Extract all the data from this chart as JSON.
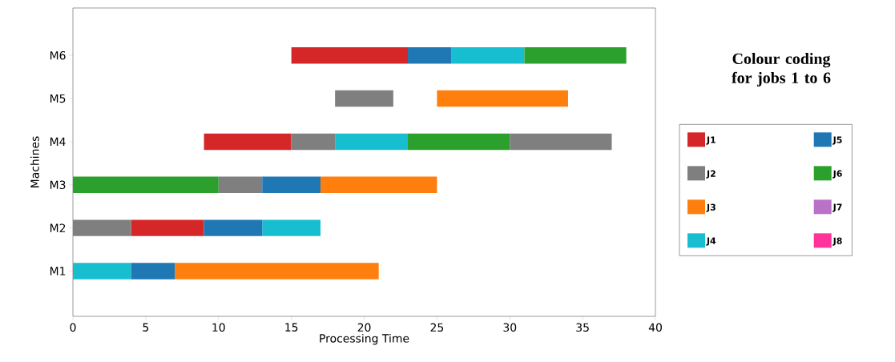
{
  "chart_data": {
    "type": "bar",
    "orientation": "horizontal",
    "xlabel": "Processing Time",
    "ylabel": "Machines",
    "categories": [
      "M6",
      "M5",
      "M4",
      "M3",
      "M2",
      "M1"
    ],
    "xlim": [
      0,
      40
    ],
    "xticks": [
      0,
      5,
      10,
      15,
      20,
      25,
      30,
      35,
      40
    ],
    "legend": "right",
    "legend_title": "Colour coding for jobs 1 to 6",
    "series": [
      {
        "name": "J1",
        "color": "#d62728",
        "base": [
          15,
          null,
          9,
          null,
          4,
          null
        ],
        "values": [
          8,
          null,
          6,
          null,
          5,
          null
        ]
      },
      {
        "name": "J2",
        "color": "#7f7f7f",
        "base": [
          null,
          18,
          15,
          10,
          0,
          null
        ],
        "values": [
          null,
          4,
          3,
          3,
          4,
          null
        ]
      },
      {
        "name": "J3",
        "color": "#ff7f0e",
        "base": [
          null,
          25,
          null,
          17,
          null,
          7
        ],
        "values": [
          null,
          9,
          null,
          8,
          null,
          14
        ]
      },
      {
        "name": "J4",
        "color": "#17becf",
        "base": [
          26,
          null,
          18,
          null,
          13,
          0
        ],
        "values": [
          5,
          null,
          5,
          null,
          4,
          4
        ]
      },
      {
        "name": "J5",
        "color": "#1f77b4",
        "base": [
          23,
          null,
          null,
          13,
          9,
          4
        ],
        "values": [
          3,
          null,
          null,
          4,
          4,
          3
        ]
      },
      {
        "name": "J6",
        "color": "#2ca02c",
        "base": [
          31,
          null,
          23,
          0,
          null,
          null
        ],
        "values": [
          7,
          null,
          7,
          10,
          null,
          null
        ]
      },
      {
        "name": "J7",
        "color": "#b873c8",
        "base": [
          null,
          null,
          null,
          null,
          null,
          null
        ],
        "values": [
          null,
          null,
          null,
          null,
          null,
          null
        ]
      },
      {
        "name": "J8",
        "color": "#ff3399",
        "base": [
          null,
          null,
          null,
          null,
          null,
          null
        ],
        "values": [
          null,
          null,
          null,
          null,
          null,
          null
        ]
      },
      {
        "color": "#7f7f7f",
        "base": [
          null,
          null,
          30,
          null,
          null,
          null
        ],
        "values": [
          null,
          null,
          7,
          null,
          null,
          null
        ]
      }
    ]
  }
}
